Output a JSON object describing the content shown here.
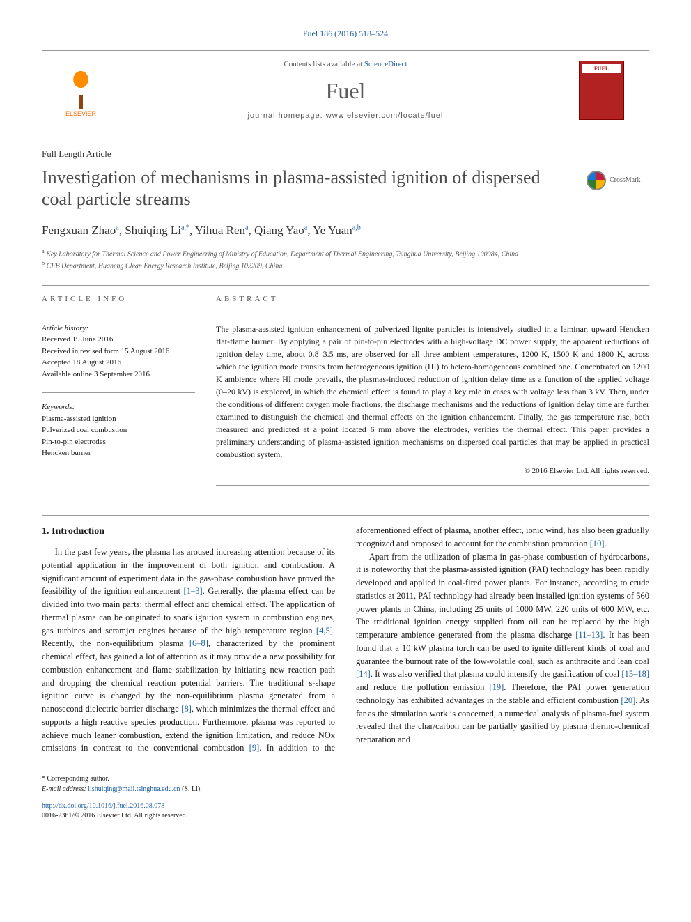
{
  "citation": "Fuel 186 (2016) 518–524",
  "header": {
    "contents_prefix": "Contents lists available at ",
    "contents_link": "ScienceDirect",
    "journal": "Fuel",
    "homepage_label": "journal homepage: ",
    "homepage_url": "www.elsevier.com/locate/fuel",
    "publisher": "ELSEVIER",
    "cover_text": "FUEL"
  },
  "article_type": "Full Length Article",
  "title": "Investigation of mechanisms in plasma-assisted ignition of dispersed coal particle streams",
  "crossmark": "CrossMark",
  "authors_html": "Fengxuan Zhao<sup>a</sup>, Shuiqing Li<sup>a,*</sup>, Yihua Ren<sup>a</sup>, Qiang Yao<sup>a</sup>, Ye Yuan<sup>a,b</sup>",
  "affiliations": [
    "a Key Laboratory for Thermal Science and Power Engineering of Ministry of Education, Department of Thermal Engineering, Tsinghua University, Beijing 100084, China",
    "b CFB Department, Huaneng Clean Energy Research Institute, Beijing 102209, China"
  ],
  "info": {
    "heading": "article info",
    "history_label": "Article history:",
    "history": [
      "Received 19 June 2016",
      "Received in revised form 15 August 2016",
      "Accepted 18 August 2016",
      "Available online 3 September 2016"
    ],
    "keywords_label": "Keywords:",
    "keywords": [
      "Plasma-assisted ignition",
      "Pulverized coal combustion",
      "Pin-to-pin electrodes",
      "Hencken burner"
    ]
  },
  "abstract": {
    "heading": "abstract",
    "text": "The plasma-assisted ignition enhancement of pulverized lignite particles is intensively studied in a laminar, upward Hencken flat-flame burner. By applying a pair of pin-to-pin electrodes with a high-voltage DC power supply, the apparent reductions of ignition delay time, about 0.8–3.5 ms, are observed for all three ambient temperatures, 1200 K, 1500 K and 1800 K, across which the ignition mode transits from heterogeneous ignition (HI) to hetero-homogeneous combined one. Concentrated on 1200 K ambience where HI mode prevails, the plasmas-induced reduction of ignition delay time as a function of the applied voltage (0–20 kV) is explored, in which the chemical effect is found to play a key role in cases with voltage less than 3 kV. Then, under the conditions of different oxygen mole fractions, the discharge mechanisms and the reductions of ignition delay time are further examined to distinguish the chemical and thermal effects on the ignition enhancement. Finally, the gas temperature rise, both measured and predicted at a point located 6 mm above the electrodes, verifies the thermal effect. This paper provides a preliminary understanding of plasma-assisted ignition mechanisms on dispersed coal particles that may be applied in practical combustion system.",
    "copyright": "© 2016 Elsevier Ltd. All rights reserved."
  },
  "intro": {
    "heading": "1. Introduction",
    "p1_pre": "In the past few years, the plasma has aroused increasing attention because of its potential application in the improvement of both ignition and combustion. A significant amount of experiment data in the gas-phase combustion have proved the feasibility of the ignition enhancement ",
    "r1": "[1–3]",
    "p1_mid1": ". Generally, the plasma effect can be divided into two main parts: thermal effect and chemical effect. The application of thermal plasma can be originated to spark ignition system in combustion engines, gas turbines and scramjet engines because of the high temperature region ",
    "r2": "[4,5]",
    "p1_mid2": ". Recently, the non-equilibrium plasma ",
    "r3": "[6–8]",
    "p1_mid3": ", characterized by the prominent chemical effect, has gained a lot of attention as it may provide a new possibility for combustion enhancement and flame stabilization by initiating new reaction path and dropping the chemical reaction potential barriers. The traditional s-shape ignition curve is changed by the non-equilibrium plasma generated from a nanosecond dielectric barrier discharge ",
    "r4": "[8]",
    "p1_mid4": ", which minimizes the thermal effect and supports a high reactive species production. Furthermore, plasma was reported to achieve much leaner combustion, extend the ignition limitation, and reduce NOx emissions in contrast to the conventional combustion ",
    "r5": "[9]",
    "p1_mid5": ". In addition to the aforementioned effect of plasma, another effect, ionic wind, has also been gradually recognized and proposed to account for the combustion promotion ",
    "r6": "[10]",
    "p1_end": ".",
    "p2_pre": "Apart from the utilization of plasma in gas-phase combustion of hydrocarbons, it is noteworthy that the plasma-assisted ignition (PAI) technology has been rapidly developed and applied in coal-fired power plants. For instance, according to crude statistics at 2011, PAI technology had already been installed ignition systems of 560 power plants in China, including 25 units of 1000 MW, 220 units of 600 MW, etc. The traditional ignition energy supplied from oil can be replaced by the high temperature ambience generated from the plasma discharge ",
    "r7": "[11–13]",
    "p2_mid1": ". It has been found that a 10 kW plasma torch can be used to ignite different kinds of coal and guarantee the burnout rate of the low-volatile coal, such as anthracite and lean coal ",
    "r8": "[14]",
    "p2_mid2": ". It was also verified that plasma could intensify the gasification of coal ",
    "r9": "[15–18]",
    "p2_mid3": " and reduce the pollution emission ",
    "r10": "[19]",
    "p2_mid4": ". Therefore, the PAI power generation technology has exhibited advantages in the stable and efficient combustion ",
    "r11": "[20]",
    "p2_end": ". As far as the simulation work is concerned, a numerical analysis of plasma-fuel system revealed that the char/carbon can be partially gasified by plasma thermo-chemical preparation and"
  },
  "footer": {
    "corr": "* Corresponding author.",
    "email_label": "E-mail address: ",
    "email": "lishuiqing@mail.tsinghua.edu.cn",
    "email_name": " (S. Li).",
    "doi": "http://dx.doi.org/10.1016/j.fuel.2016.08.078",
    "issn": "0016-2361/© 2016 Elsevier Ltd. All rights reserved."
  },
  "colors": {
    "link": "#2060a0",
    "elsevier": "#ff6a00",
    "cover": "#b22222",
    "text": "#1a1a1a"
  }
}
